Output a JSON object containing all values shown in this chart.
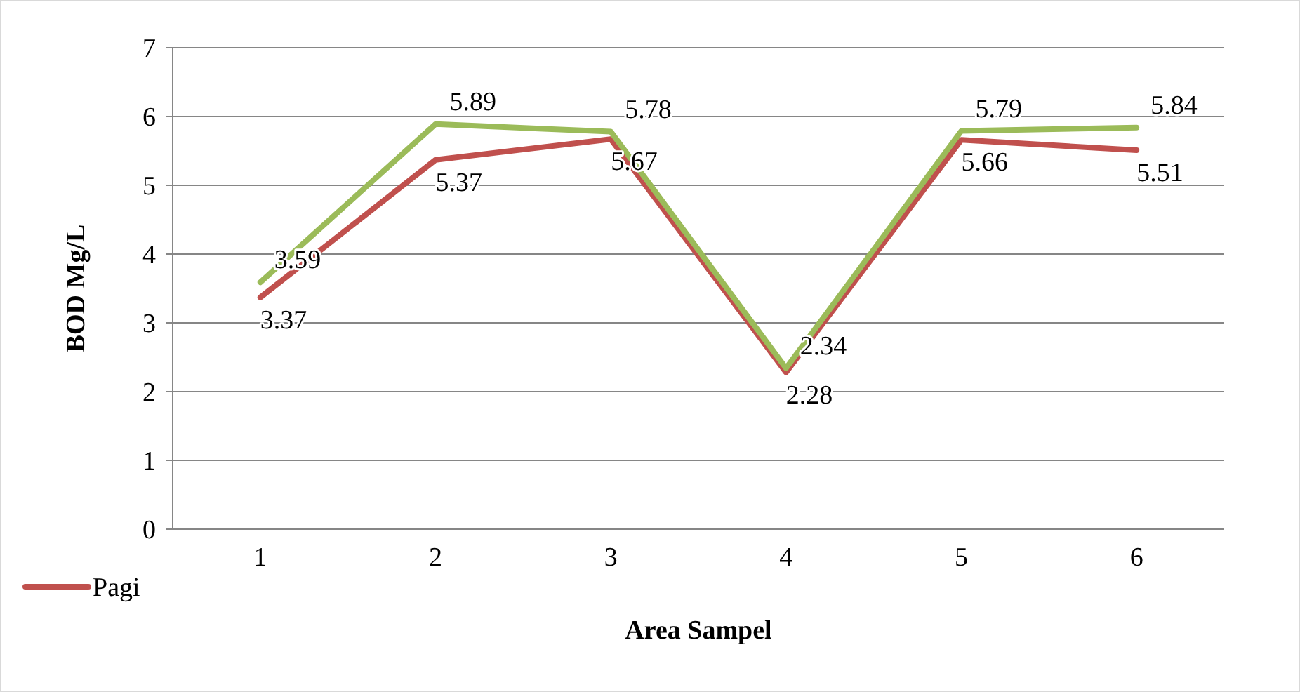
{
  "chart_data": {
    "type": "line",
    "xlabel": "Area Sampel",
    "ylabel": "BOD Mg/L",
    "categories": [
      "1",
      "2",
      "3",
      "4",
      "5",
      "6"
    ],
    "series": [
      {
        "name": "Pagi",
        "color": "#c0504d",
        "values": [
          3.37,
          5.37,
          5.67,
          2.28,
          5.66,
          5.51
        ]
      },
      {
        "color": "#9bbb59",
        "values": [
          3.59,
          5.89,
          5.78,
          2.34,
          5.79,
          5.84
        ]
      }
    ],
    "ylim": [
      0,
      7
    ],
    "yticks": [
      0,
      1,
      2,
      3,
      4,
      5,
      6,
      7
    ],
    "grid": "y",
    "data_labels": true,
    "legend": "bottom left",
    "marker": "none",
    "line_style": "solid"
  }
}
